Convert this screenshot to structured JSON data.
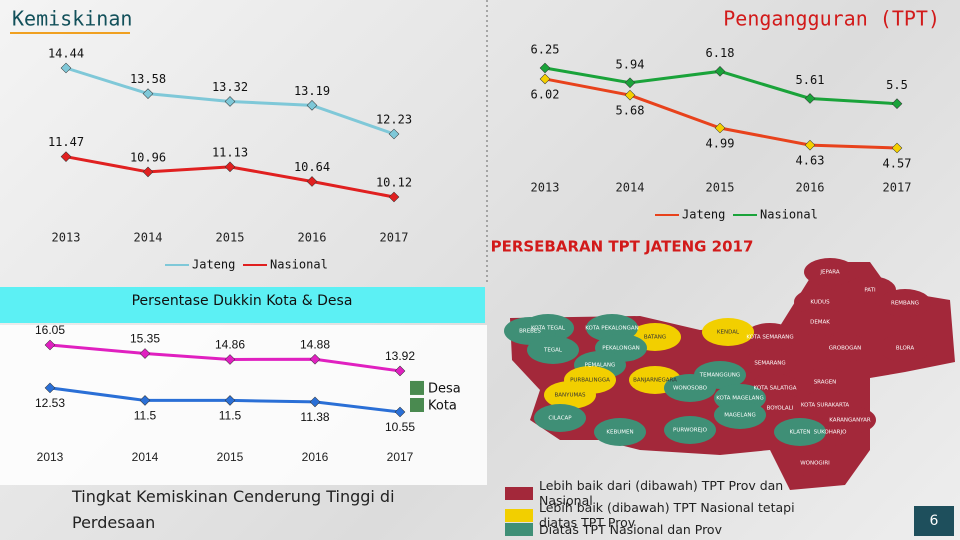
{
  "header": {
    "left_title": "Kemiskinan",
    "right_title": "Pengangguran (TPT)"
  },
  "chart_data": [
    {
      "type": "line",
      "categories": [
        "2013",
        "2014",
        "2015",
        "2016",
        "2017"
      ],
      "series": [
        {
          "name": "Jateng",
          "color": "#7fc8d8",
          "values": [
            14.44,
            13.58,
            13.32,
            13.19,
            12.23
          ]
        },
        {
          "name": "Nasional",
          "color": "#e02020",
          "values": [
            11.47,
            10.96,
            11.13,
            10.64,
            10.12
          ]
        }
      ]
    },
    {
      "type": "line",
      "categories": [
        "2013",
        "2014",
        "2015",
        "2016",
        "2017"
      ],
      "series": [
        {
          "name": "Jateng",
          "color": "#e8421c",
          "values": [
            6.02,
            5.68,
            4.99,
            4.63,
            4.57
          ]
        },
        {
          "name": "Nasional",
          "color": "#1aa33a",
          "values": [
            6.25,
            5.94,
            6.18,
            5.61,
            5.5
          ]
        }
      ]
    },
    {
      "type": "line",
      "title": "Persentase Dukkin Kota & Desa",
      "categories": [
        "2013",
        "2014",
        "2015",
        "2016",
        "2017"
      ],
      "series": [
        {
          "name": "Desa",
          "color": "#e020c0",
          "values": [
            16.05,
            15.35,
            14.86,
            14.88,
            13.92
          ]
        },
        {
          "name": "Kota",
          "color": "#2a6fd6",
          "values": [
            12.53,
            11.5,
            11.5,
            11.38,
            10.55
          ]
        }
      ]
    }
  ],
  "map": {
    "title": "PERSEBARAN TPT JATENG 2017",
    "regions": [
      {
        "name": "JEPARA",
        "color": "#a3283a"
      },
      {
        "name": "PATI",
        "color": "#a3283a"
      },
      {
        "name": "KUDUS",
        "color": "#a3283a"
      },
      {
        "name": "REMBANG",
        "color": "#a3283a"
      },
      {
        "name": "DEMAK",
        "color": "#a3283a"
      },
      {
        "name": "KOTA SEMARANG",
        "color": "#a3283a"
      },
      {
        "name": "GROBOGAN",
        "color": "#a3283a"
      },
      {
        "name": "BLORA",
        "color": "#a3283a"
      },
      {
        "name": "KENDAL",
        "color": "#f2cf00"
      },
      {
        "name": "BATANG",
        "color": "#f2cf00"
      },
      {
        "name": "KOTA PEKALONGAN",
        "color": "#3f8f76"
      },
      {
        "name": "PEKALONGAN",
        "color": "#3f8f76"
      },
      {
        "name": "KOTA TEGAL",
        "color": "#3f8f76"
      },
      {
        "name": "BREBES",
        "color": "#3f8f76"
      },
      {
        "name": "TEGAL",
        "color": "#3f8f76"
      },
      {
        "name": "PEMALANG",
        "color": "#3f8f76"
      },
      {
        "name": "TEMANGGUNG",
        "color": "#3f8f76"
      },
      {
        "name": "SEMARANG",
        "color": "#a3283a"
      },
      {
        "name": "KOTA SALATIGA",
        "color": "#a3283a"
      },
      {
        "name": "BOYOLALI",
        "color": "#a3283a"
      },
      {
        "name": "SRAGEN",
        "color": "#a3283a"
      },
      {
        "name": "KOTA SURAKARTA",
        "color": "#a3283a"
      },
      {
        "name": "KARANGANYAR",
        "color": "#a3283a"
      },
      {
        "name": "PURBALINGGA",
        "color": "#f2cf00"
      },
      {
        "name": "BANJARNEGARA",
        "color": "#f2cf00"
      },
      {
        "name": "WONOSOBO",
        "color": "#3f8f76"
      },
      {
        "name": "KOTA MAGELANG",
        "color": "#3f8f76"
      },
      {
        "name": "MAGELANG",
        "color": "#3f8f76"
      },
      {
        "name": "SUKOHARJO",
        "color": "#a3283a"
      },
      {
        "name": "KLATEN",
        "color": "#3f8f76"
      },
      {
        "name": "BANYUMAS",
        "color": "#f2cf00"
      },
      {
        "name": "CILACAP",
        "color": "#3f8f76"
      },
      {
        "name": "KEBUMEN",
        "color": "#3f8f76"
      },
      {
        "name": "PURWOREJO",
        "color": "#3f8f76"
      },
      {
        "name": "WONOGIRI",
        "color": "#a3283a"
      }
    ],
    "legend": [
      {
        "color": "#a3283a",
        "label": "Lebih baik dari (dibawah) TPT Prov dan Nasional"
      },
      {
        "color": "#f2cf00",
        "label": "Lebih baik (dibawah) TPT Nasional tetapi diatas TPT Prov"
      },
      {
        "color": "#3f8f76",
        "label": "Diatas TPT Nasional dan Prov"
      }
    ]
  },
  "note": "Tingkat Kemiskinan Cenderung Tinggi di Perdesaan",
  "page_number": "6"
}
